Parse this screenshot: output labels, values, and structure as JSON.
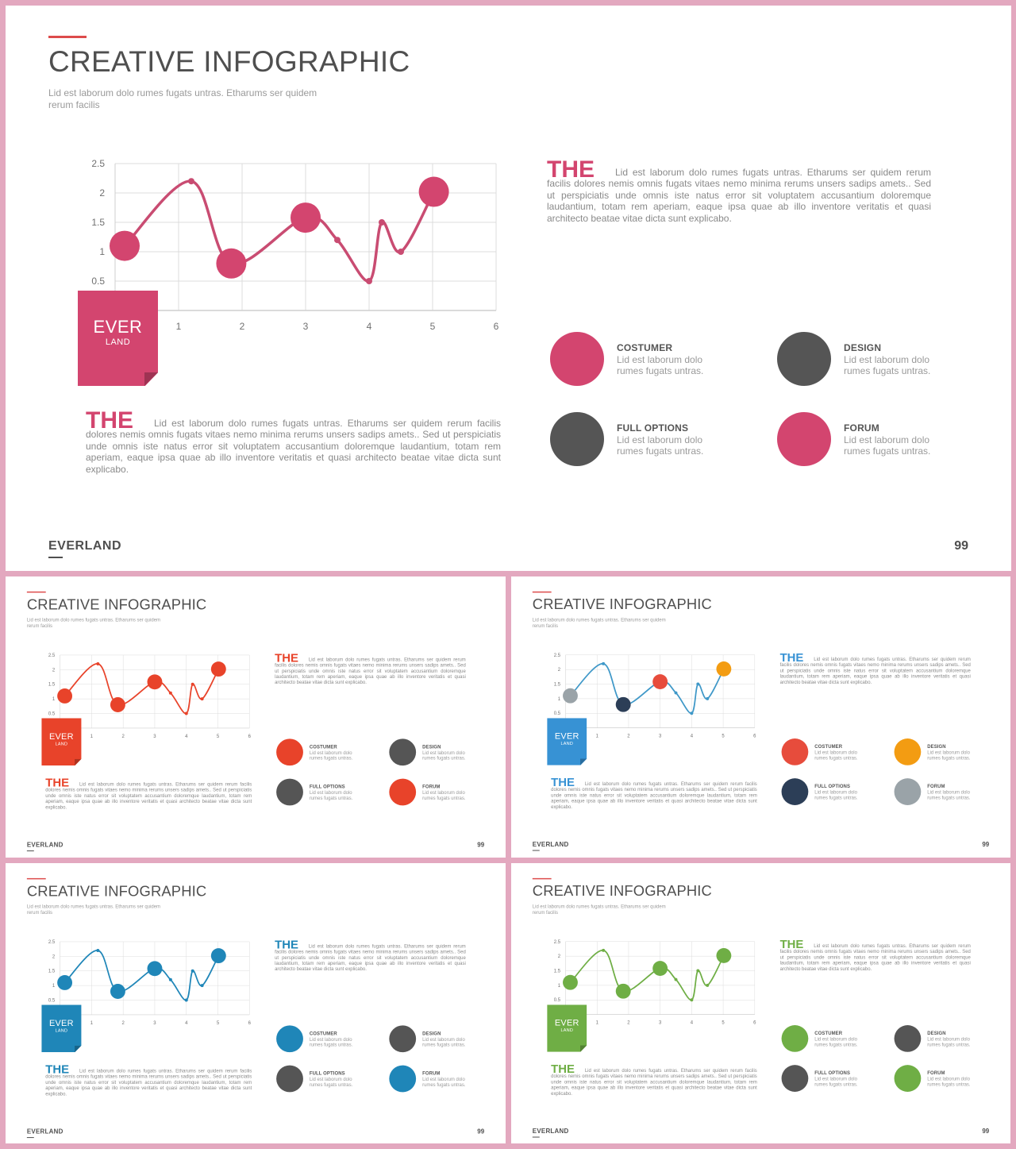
{
  "title": "CREATIVE INFOGRAPHIC",
  "subtitle": "Lid est laborum dolo rumes fugats untras. Etharums ser quidem rerum facilis",
  "badge": {
    "main": "EVER",
    "sub": "LAND"
  },
  "right_block": {
    "heading": "THE",
    "text": "Lid est laborum dolo rumes fugats untras. Etharums ser quidem rerum facilis dolores nemis omnis fugats vitaes nemo minima rerums unsers sadips amets.. Sed ut perspiciatis unde omnis iste natus error sit voluptatem accusantium doloremque laudantium, totam rem aperiam, eaque ipsa quae ab illo inventore veritatis et quasi architecto beatae vitae dicta sunt explicabo."
  },
  "left_block": {
    "heading": "THE",
    "text": "Lid est laborum dolo rumes fugats untras. Etharums ser quidem rerum facilis dolores nemis omnis fugats vitaes nemo minima rerums unsers sadips amets.. Sed ut perspiciatis unde omnis iste natus error sit voluptatem accusantium doloremque laudantium, totam rem aperiam, eaque ipsa quae ab illo inventore veritatis et quasi architecto beatae vitae dicta sunt explicabo."
  },
  "legend": [
    {
      "title": "COSTUMER",
      "desc": "Lid est laborum dolo rumes fugats untras."
    },
    {
      "title": "DESIGN",
      "desc": "Lid est laborum dolo rumes fugats untras."
    },
    {
      "title": "FULL OPTIONS",
      "desc": "Lid est laborum dolo rumes fugats untras."
    },
    {
      "title": "FORUM",
      "desc": "Lid est laborum dolo rumes fugats untras."
    }
  ],
  "footer": {
    "brand": "EVERLAND",
    "page": "99"
  },
  "chart_data": {
    "type": "scatter",
    "x_ticks": [
      "1",
      "2",
      "3",
      "4",
      "5",
      "6"
    ],
    "y_ticks": [
      "0.5",
      "1",
      "1.5",
      "2",
      "2.5"
    ],
    "xlim": [
      0,
      6
    ],
    "ylim": [
      0,
      2.5
    ],
    "grid": true,
    "points": [
      {
        "x": 0.15,
        "y": 1.1,
        "marker": "large"
      },
      {
        "x": 1.2,
        "y": 2.2,
        "marker": "small"
      },
      {
        "x": 1.83,
        "y": 0.8,
        "marker": "large"
      },
      {
        "x": 3.0,
        "y": 1.58,
        "marker": "large"
      },
      {
        "x": 3.5,
        "y": 1.2,
        "marker": "small"
      },
      {
        "x": 4.0,
        "y": 0.5,
        "marker": "small"
      },
      {
        "x": 4.2,
        "y": 1.5,
        "marker": "small"
      },
      {
        "x": 4.5,
        "y": 1.0,
        "marker": "small"
      },
      {
        "x": 5.02,
        "y": 2.02,
        "marker": "large"
      }
    ]
  },
  "themes": [
    {
      "accent": "#d3456f",
      "line": "#c94c72",
      "large": [
        "#d3456f",
        "#d3456f",
        "#d3456f",
        "#d3456f"
      ],
      "legend": [
        "#d3456f",
        "#555555",
        "#555555",
        "#d3456f"
      ]
    },
    {
      "accent": "#e8432a",
      "line": "#e8432a",
      "large": [
        "#e8432a",
        "#e8432a",
        "#e8432a",
        "#e8432a"
      ],
      "legend": [
        "#e8432a",
        "#555555",
        "#555555",
        "#e8432a"
      ]
    },
    {
      "accent": "#3792d4",
      "line": "#3f98c8",
      "large": [
        "#9aa3a8",
        "#2c3e57",
        "#e74c3c",
        "#f39c12"
      ],
      "legend": [
        "#e74c3c",
        "#f39c12",
        "#2c3e57",
        "#9aa3a8"
      ]
    },
    {
      "accent": "#1f86b8",
      "line": "#1f86b8",
      "large": [
        "#1f86b8",
        "#1f86b8",
        "#1f86b8",
        "#1f86b8"
      ],
      "legend": [
        "#1f86b8",
        "#555555",
        "#555555",
        "#1f86b8"
      ]
    },
    {
      "accent": "#6fae45",
      "line": "#6fae45",
      "large": [
        "#6fae45",
        "#6fae45",
        "#6fae45",
        "#6fae45"
      ],
      "legend": [
        "#6fae45",
        "#555555",
        "#555555",
        "#6fae45"
      ]
    }
  ]
}
